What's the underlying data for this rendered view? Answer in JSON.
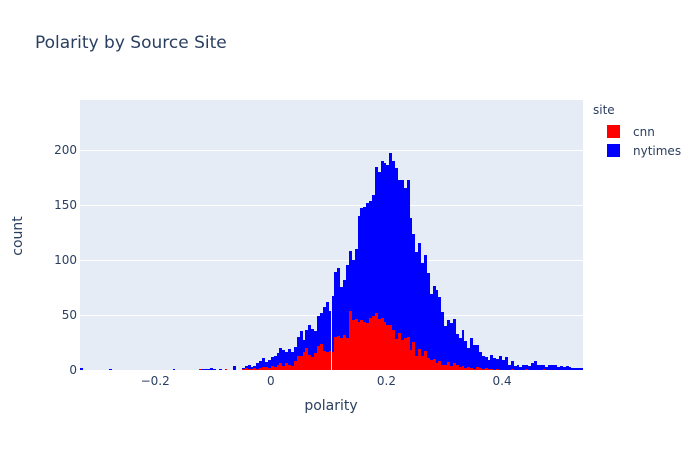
{
  "chart_data": {
    "type": "bar",
    "subtype": "stacked histogram",
    "title": "Polarity by Source Site",
    "xlabel": "polarity",
    "ylabel": "count",
    "xlim": [
      -0.33,
      0.54
    ],
    "ylim": [
      0,
      245
    ],
    "grid": true,
    "legend_position": "right",
    "legend_title": "site",
    "x_ticks": [
      -0.2,
      0,
      0.2,
      0.4
    ],
    "x_tick_labels": [
      "−0.2",
      "0",
      "0.2",
      "0.4"
    ],
    "y_ticks": [
      0,
      50,
      100,
      150,
      200
    ],
    "bin_start": -0.33,
    "bin_width": 0.005,
    "series": [
      {
        "name": "cnn",
        "color": "#ff0000",
        "values": [
          0,
          0,
          0,
          0,
          0,
          0,
          0,
          0,
          0,
          0,
          0,
          0,
          0,
          0,
          0,
          0,
          0,
          0,
          0,
          0,
          0,
          0,
          0,
          0,
          0,
          0,
          0,
          0,
          0,
          0,
          0,
          0,
          0,
          0,
          0,
          0,
          0,
          0,
          0,
          0,
          0,
          1,
          0,
          0,
          0,
          0,
          0,
          0,
          0,
          0,
          1,
          0,
          0,
          0,
          0,
          0,
          1,
          2,
          1,
          1,
          2,
          1,
          2,
          3,
          3,
          2,
          4,
          3,
          5,
          6,
          4,
          6,
          5,
          4,
          8,
          13,
          13,
          16,
          20,
          14,
          12,
          15,
          22,
          24,
          17,
          16,
          17,
          16,
          30,
          31,
          29,
          32,
          29,
          54,
          45,
          46,
          44,
          45,
          44,
          43,
          47,
          49,
          52,
          46,
          47,
          44,
          41,
          41,
          36,
          28,
          34,
          27,
          29,
          30,
          18,
          25,
          13,
          19,
          13,
          17,
          11,
          9,
          10,
          6,
          8,
          5,
          5,
          7,
          4,
          6,
          5,
          3,
          4,
          2,
          3,
          2,
          1,
          3,
          2,
          1,
          2,
          1,
          1,
          0,
          1,
          0,
          0,
          0,
          0,
          1,
          0,
          0,
          0,
          0,
          1,
          0,
          0,
          0,
          0,
          0,
          1,
          0,
          0,
          0,
          0,
          0,
          0,
          0,
          0,
          0,
          0,
          0,
          0,
          0
        ]
      },
      {
        "name": "nytimes",
        "color": "#0000ff",
        "values": [
          2,
          0,
          0,
          0,
          0,
          0,
          0,
          0,
          0,
          0,
          1,
          0,
          0,
          0,
          0,
          0,
          0,
          0,
          0,
          0,
          0,
          0,
          0,
          0,
          0,
          0,
          0,
          0,
          0,
          0,
          0,
          0,
          1,
          0,
          0,
          0,
          0,
          0,
          0,
          0,
          0,
          0,
          1,
          1,
          1,
          2,
          1,
          0,
          1,
          0,
          0,
          0,
          0,
          4,
          0,
          0,
          1,
          2,
          4,
          2,
          2,
          5,
          6,
          8,
          4,
          7,
          8,
          10,
          10,
          14,
          14,
          10,
          14,
          12,
          13,
          17,
          22,
          11,
          16,
          27,
          25,
          20,
          27,
          28,
          40,
          46,
          37,
          51,
          59,
          62,
          46,
          50,
          66,
          54,
          55,
          64,
          96,
          102,
          104,
          109,
          106,
          110,
          132,
          134,
          143,
          144,
          145,
          156,
          154,
          155,
          138,
          145,
          136,
          142,
          120,
          98,
          94,
          96,
          84,
          87,
          77,
          60,
          66,
          67,
          58,
          48,
          35,
          38,
          39,
          40,
          28,
          26,
          32,
          24,
          17,
          27,
          22,
          20,
          14,
          12,
          10,
          8,
          13,
          11,
          9,
          13,
          9,
          12,
          5,
          7,
          4,
          5,
          3,
          5,
          4,
          4,
          6,
          8,
          5,
          5,
          4,
          3,
          5,
          5,
          5,
          3,
          4,
          3,
          4,
          3,
          2,
          2,
          2,
          2
        ]
      }
    ]
  }
}
